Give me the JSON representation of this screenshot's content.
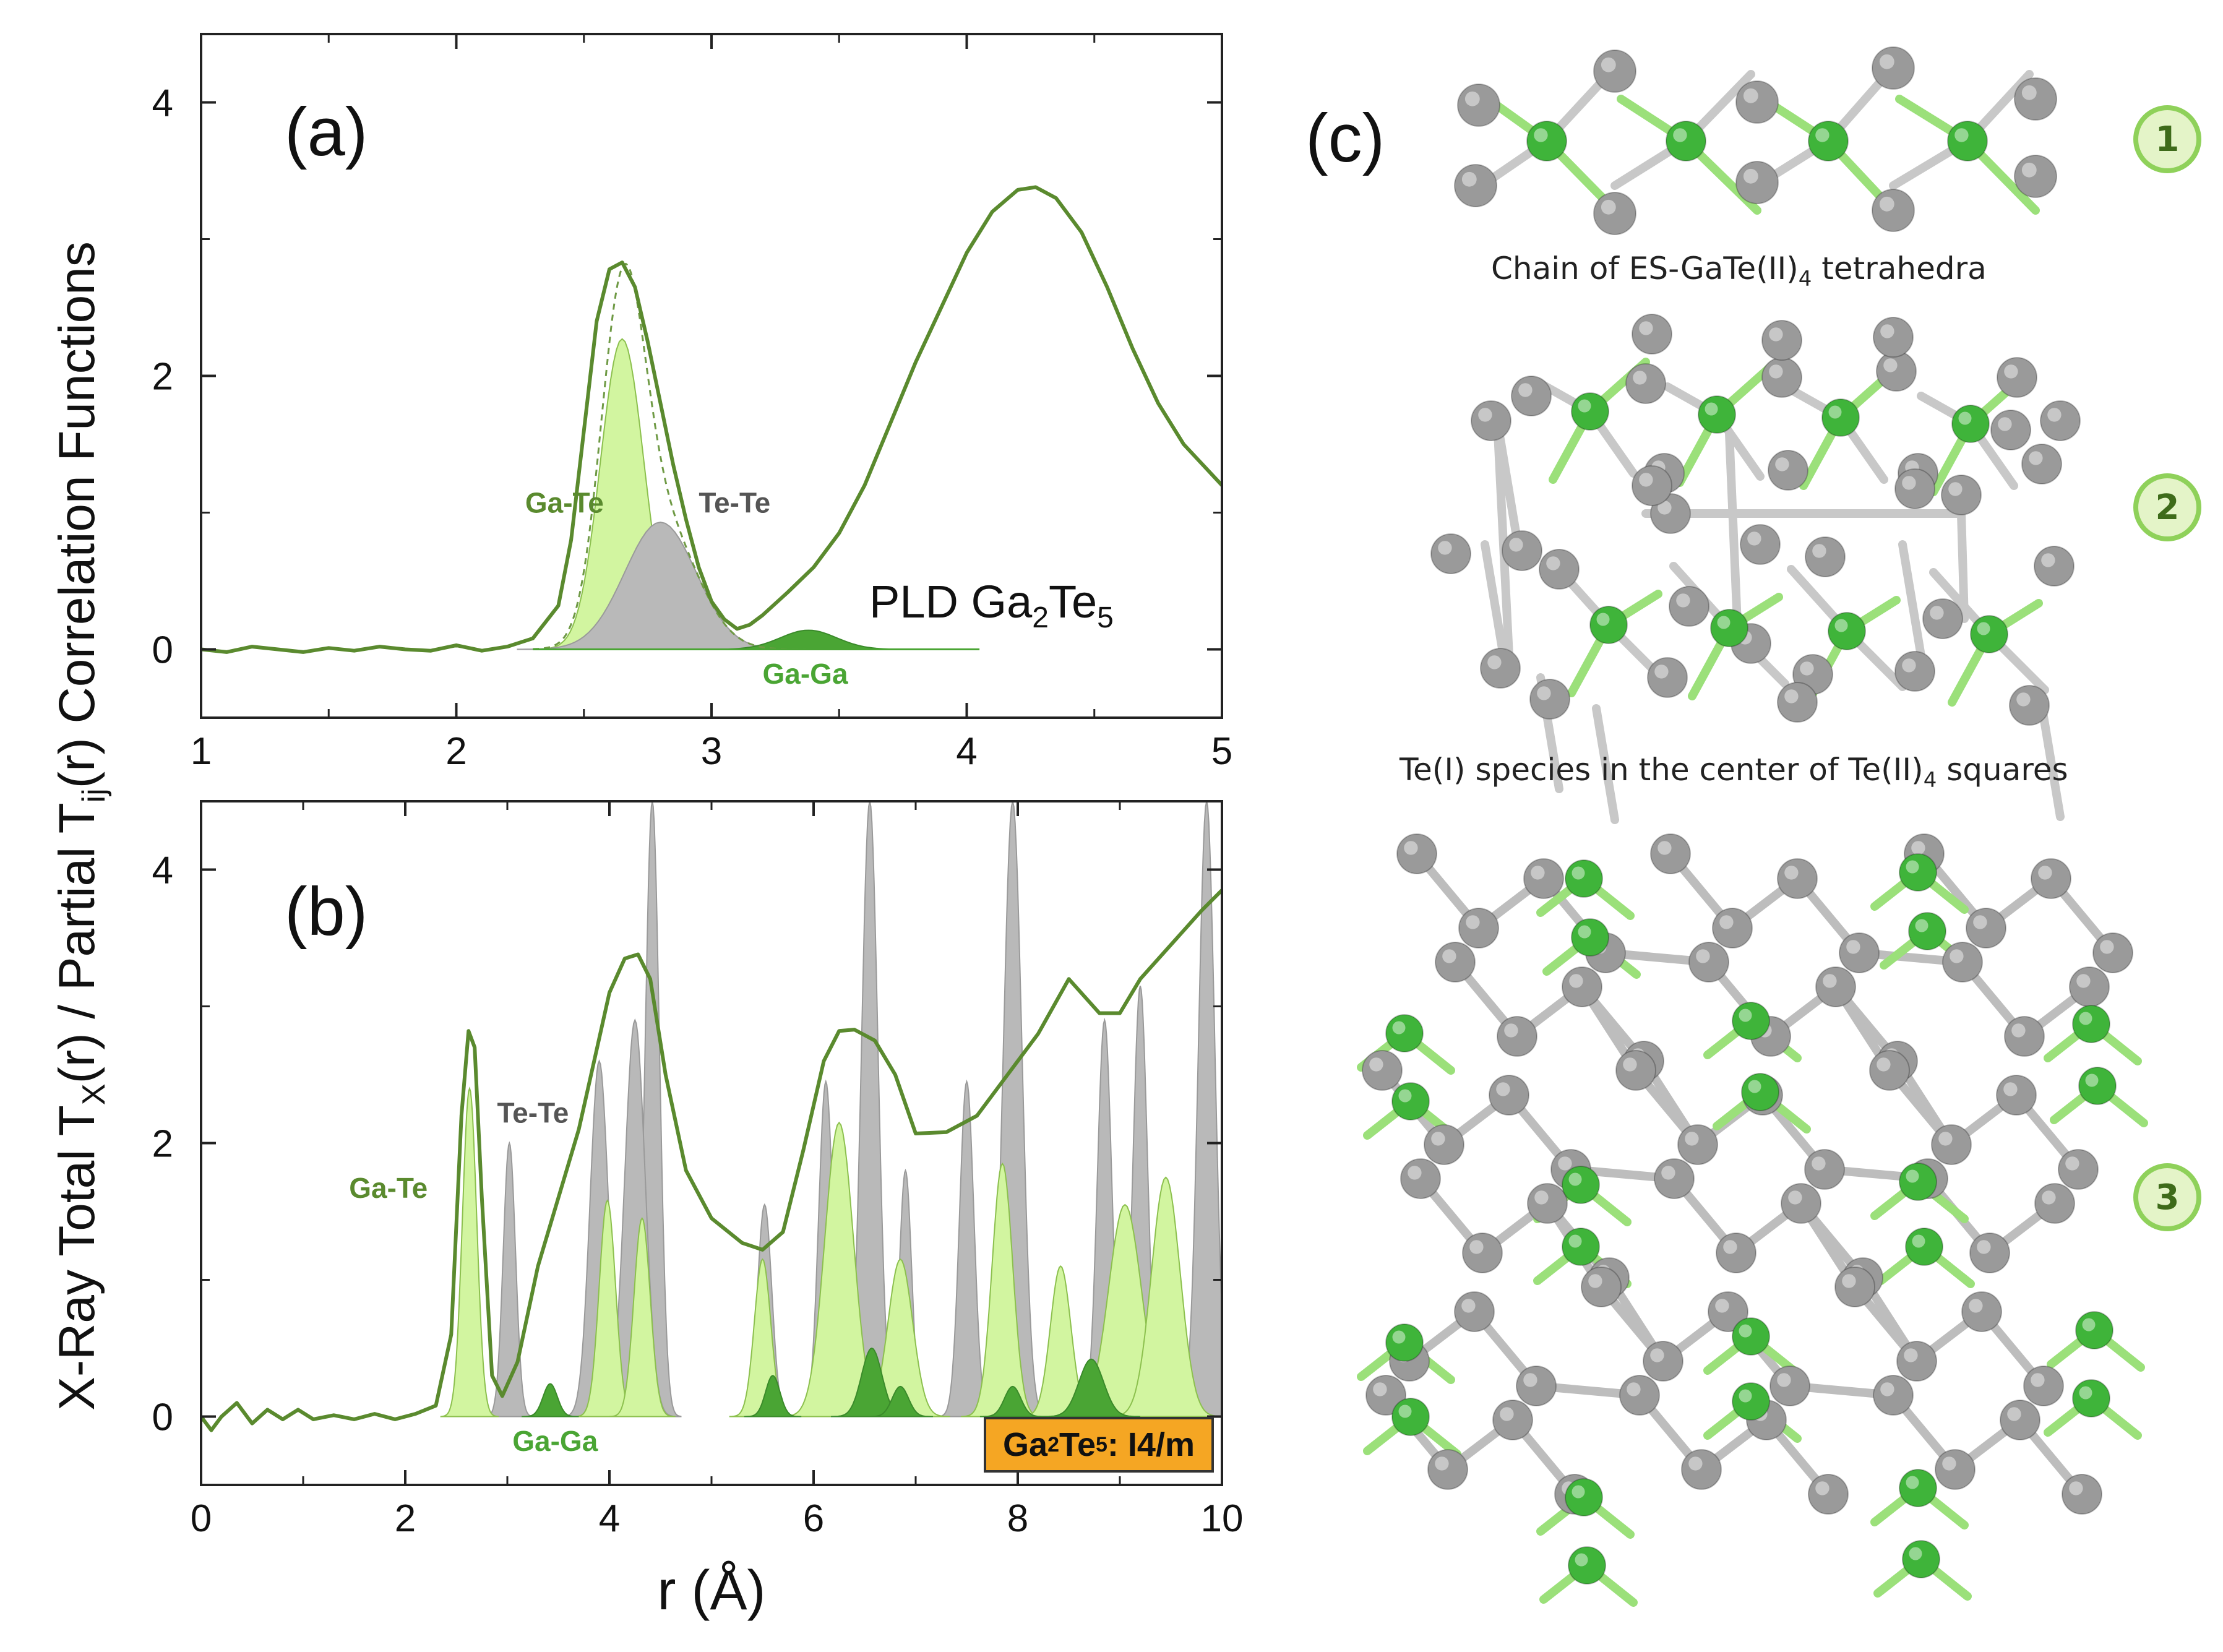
{
  "y_axis_label": {
    "pre": "X-Ray Total T",
    "s1": "X",
    "mid": "(r) / Partial T",
    "s2": "ij",
    "post": "(r) Correlation Functions"
  },
  "x_axis_label": "r (Å)",
  "panels": {
    "a": {
      "label": "(a)",
      "composition": {
        "pre": "PLD Ga",
        "s1": "2",
        "mid": "Te",
        "s2": "5"
      }
    },
    "b": {
      "label": "(b)",
      "badge": {
        "pre": "Ga",
        "s1": "2",
        "mid": "Te",
        "s2": "5",
        "post": ": I4/m"
      }
    },
    "c": {
      "label": "(c)",
      "caption1": {
        "pre": "Chain of ES-GaTe(II)",
        "sub": "4",
        "post": " tetrahedra"
      },
      "caption2": {
        "pre": "Te(I) species in the center of Te(II)",
        "sub": "4",
        "post": " squares"
      },
      "badges": [
        "1",
        "2",
        "3"
      ]
    }
  },
  "colors": {
    "total": "#5a8a2e",
    "ga_te": "#d2f5a0",
    "te_te": "#b9b9b9",
    "ga_ga": "#4aa534",
    "ga_atom": "#3fb43a",
    "te_atom": "#9a9a9a"
  },
  "chart_data": [
    {
      "type": "area",
      "panel": "a",
      "xlim": [
        1,
        5
      ],
      "ylim": [
        -0.5,
        4.5
      ],
      "xticks": [
        1,
        2,
        3,
        4,
        5
      ],
      "yticks": [
        0,
        2,
        4
      ],
      "series": [
        {
          "name": "Ga-Te",
          "kind": "gaussian",
          "peaks": [
            {
              "center": 2.65,
              "height": 2.27,
              "width": 0.085
            }
          ]
        },
        {
          "name": "Te-Te",
          "kind": "gaussian",
          "peaks": [
            {
              "center": 2.8,
              "height": 0.93,
              "width": 0.14
            }
          ]
        },
        {
          "name": "Ga-Ga",
          "kind": "gaussian",
          "peaks": [
            {
              "center": 3.38,
              "height": 0.14,
              "width": 0.11
            }
          ]
        },
        {
          "name": "",
          "kind": "line",
          "x": [
            1.0,
            1.1,
            1.2,
            1.3,
            1.4,
            1.5,
            1.6,
            1.7,
            1.8,
            1.9,
            2.0,
            2.1,
            2.2,
            2.3,
            2.4,
            2.45,
            2.5,
            2.55,
            2.6,
            2.65,
            2.7,
            2.75,
            2.8,
            2.85,
            2.9,
            2.95,
            3.0,
            3.05,
            3.1,
            3.15,
            3.2,
            3.3,
            3.4,
            3.5,
            3.6,
            3.7,
            3.8,
            3.9,
            4.0,
            4.1,
            4.2,
            4.27,
            4.35,
            4.45,
            4.55,
            4.65,
            4.75,
            4.85,
            5.0
          ],
          "y": [
            0.0,
            -0.02,
            0.02,
            0.0,
            -0.02,
            0.01,
            -0.01,
            0.02,
            0.0,
            -0.01,
            0.03,
            -0.01,
            0.02,
            0.08,
            0.32,
            0.8,
            1.6,
            2.4,
            2.78,
            2.83,
            2.65,
            2.25,
            1.8,
            1.35,
            0.95,
            0.6,
            0.35,
            0.22,
            0.15,
            0.18,
            0.25,
            0.42,
            0.6,
            0.85,
            1.2,
            1.65,
            2.1,
            2.5,
            2.9,
            3.2,
            3.36,
            3.38,
            3.3,
            3.05,
            2.65,
            2.2,
            1.8,
            1.5,
            1.2
          ]
        }
      ]
    },
    {
      "type": "area",
      "panel": "b",
      "xlim": [
        0,
        10
      ],
      "ylim": [
        -0.5,
        4.5
      ],
      "xticks": [
        0,
        2,
        4,
        6,
        8,
        10
      ],
      "yticks": [
        0,
        2,
        4
      ],
      "series": [
        {
          "name": "Te-Te",
          "kind": "gaussian",
          "peaks": [
            {
              "center": 3.02,
              "height": 2.0,
              "width": 0.06
            },
            {
              "center": 3.9,
              "height": 2.6,
              "width": 0.09
            },
            {
              "center": 4.42,
              "height": 4.5,
              "width": 0.07
            },
            {
              "center": 4.25,
              "height": 2.9,
              "width": 0.1
            },
            {
              "center": 5.52,
              "height": 1.55,
              "width": 0.07
            },
            {
              "center": 6.12,
              "height": 2.45,
              "width": 0.07
            },
            {
              "center": 6.55,
              "height": 4.5,
              "width": 0.08
            },
            {
              "center": 6.9,
              "height": 1.8,
              "width": 0.06
            },
            {
              "center": 7.5,
              "height": 2.45,
              "width": 0.07
            },
            {
              "center": 7.95,
              "height": 4.5,
              "width": 0.09
            },
            {
              "center": 8.85,
              "height": 2.9,
              "width": 0.07
            },
            {
              "center": 9.2,
              "height": 3.15,
              "width": 0.07
            },
            {
              "center": 9.85,
              "height": 4.5,
              "width": 0.08
            }
          ]
        },
        {
          "name": "Ga-Te",
          "kind": "gaussian",
          "peaks": [
            {
              "center": 2.63,
              "height": 2.4,
              "width": 0.07
            },
            {
              "center": 3.98,
              "height": 1.58,
              "width": 0.08
            },
            {
              "center": 4.32,
              "height": 1.45,
              "width": 0.08
            },
            {
              "center": 5.5,
              "height": 1.15,
              "width": 0.08
            },
            {
              "center": 6.25,
              "height": 2.15,
              "width": 0.14
            },
            {
              "center": 6.85,
              "height": 1.15,
              "width": 0.12
            },
            {
              "center": 7.85,
              "height": 1.85,
              "width": 0.1
            },
            {
              "center": 8.42,
              "height": 1.1,
              "width": 0.1
            },
            {
              "center": 9.05,
              "height": 1.55,
              "width": 0.16
            },
            {
              "center": 9.45,
              "height": 1.75,
              "width": 0.14
            }
          ]
        },
        {
          "name": "Ga-Ga",
          "kind": "gaussian",
          "peaks": [
            {
              "center": 3.42,
              "height": 0.24,
              "width": 0.07
            },
            {
              "center": 5.6,
              "height": 0.3,
              "width": 0.07
            },
            {
              "center": 6.57,
              "height": 0.5,
              "width": 0.1
            },
            {
              "center": 6.85,
              "height": 0.22,
              "width": 0.08
            },
            {
              "center": 7.95,
              "height": 0.22,
              "width": 0.08
            },
            {
              "center": 8.72,
              "height": 0.42,
              "width": 0.12
            }
          ]
        },
        {
          "name": "",
          "kind": "line",
          "x": [
            0.0,
            0.1,
            0.2,
            0.35,
            0.5,
            0.65,
            0.8,
            0.95,
            1.1,
            1.3,
            1.5,
            1.7,
            1.9,
            2.1,
            2.3,
            2.45,
            2.55,
            2.62,
            2.68,
            2.75,
            2.85,
            2.95,
            3.1,
            3.3,
            3.5,
            3.7,
            3.85,
            4.0,
            4.15,
            4.28,
            4.4,
            4.55,
            4.75,
            5.0,
            5.3,
            5.5,
            5.7,
            5.9,
            6.1,
            6.25,
            6.4,
            6.6,
            6.8,
            7.0,
            7.3,
            7.6,
            7.9,
            8.2,
            8.5,
            8.8,
            9.0,
            9.2,
            9.5,
            9.8,
            10.0
          ],
          "y": [
            0.0,
            -0.1,
            0.0,
            0.1,
            -0.05,
            0.05,
            -0.02,
            0.05,
            -0.02,
            0.01,
            -0.02,
            0.02,
            -0.02,
            0.02,
            0.08,
            0.6,
            2.2,
            2.82,
            2.7,
            1.6,
            0.3,
            0.15,
            0.4,
            1.1,
            1.6,
            2.1,
            2.6,
            3.1,
            3.35,
            3.38,
            3.2,
            2.5,
            1.8,
            1.45,
            1.27,
            1.22,
            1.35,
            1.95,
            2.6,
            2.82,
            2.83,
            2.75,
            2.5,
            2.07,
            2.08,
            2.2,
            2.5,
            2.8,
            3.2,
            2.95,
            2.95,
            3.2,
            3.45,
            3.7,
            3.85
          ]
        }
      ]
    }
  ],
  "annotations": {
    "a_ga_te": "Ga-Te",
    "a_te_te": "Te-Te",
    "a_ga_ga": "Ga-Ga",
    "b_te_te": "Te-Te",
    "b_ga_te": "Ga-Te",
    "b_ga_ga": "Ga-Ga"
  }
}
